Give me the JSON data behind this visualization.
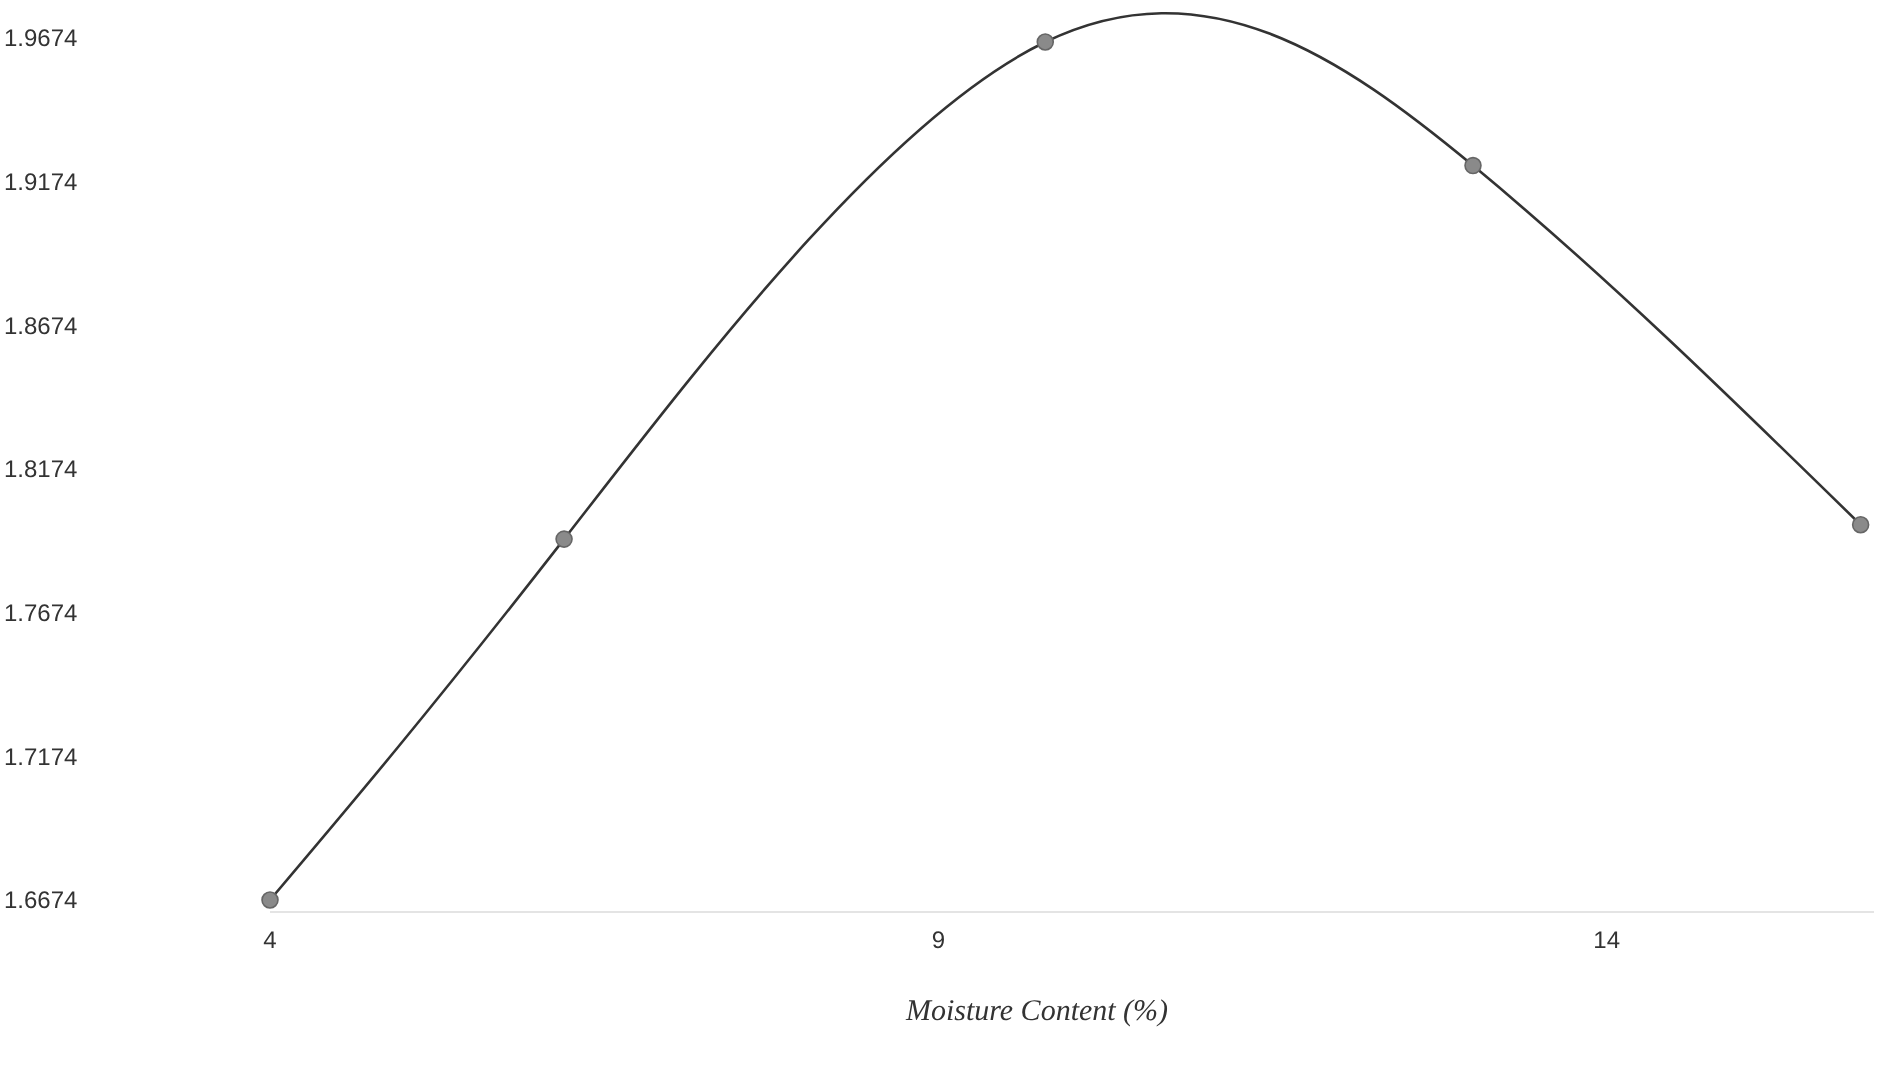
{
  "chart_data": {
    "type": "line",
    "xlabel": "Moisture Content (%)",
    "x": [
      4,
      6.2,
      9.8,
      13,
      15.9
    ],
    "series": [
      {
        "color": "#333333",
        "values": [
          1.6674,
          1.793,
          1.966,
          1.923,
          1.798
        ]
      }
    ],
    "marker": "circle",
    "xlim": [
      4,
      16
    ],
    "xticks": [
      4,
      9,
      14
    ],
    "ylim": [
      1.6674,
      1.9674
    ],
    "yticks": [
      1.6674,
      1.7174,
      1.7674,
      1.8174,
      1.8674,
      1.9174,
      1.9674
    ],
    "grid": false
  }
}
